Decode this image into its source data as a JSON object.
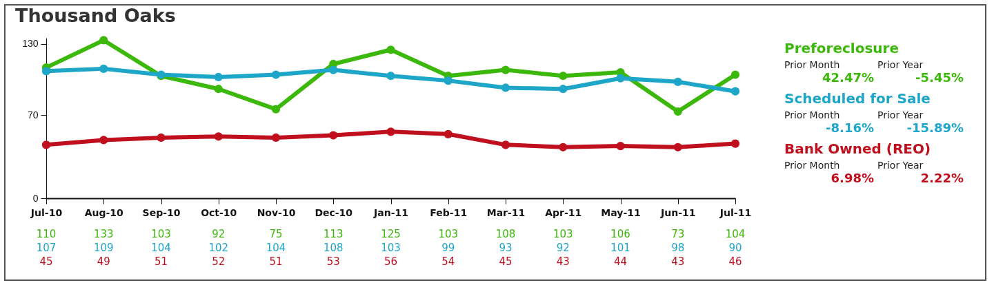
{
  "chart_data": {
    "type": "line",
    "title": "Thousand Oaks",
    "categories": [
      "Jul-10",
      "Aug-10",
      "Sep-10",
      "Oct-10",
      "Nov-10",
      "Dec-10",
      "Jan-11",
      "Feb-11",
      "Mar-11",
      "Apr-11",
      "May-11",
      "Jun-11",
      "Jul-11"
    ],
    "series": [
      {
        "name": "Preforeclosure",
        "color": "#3cb80a",
        "values": [
          110,
          133,
          103,
          92,
          75,
          113,
          125,
          103,
          108,
          103,
          106,
          73,
          104
        ]
      },
      {
        "name": "Scheduled for Sale",
        "color": "#1ea6c8",
        "values": [
          107,
          109,
          104,
          102,
          104,
          108,
          103,
          99,
          93,
          92,
          101,
          98,
          90
        ]
      },
      {
        "name": "Bank Owned (REO)",
        "color": "#c0101e",
        "values": [
          45,
          49,
          51,
          52,
          51,
          53,
          56,
          54,
          45,
          43,
          44,
          43,
          46
        ]
      }
    ],
    "ylim": [
      0,
      135
    ],
    "yticks": [
      0,
      70,
      130
    ],
    "marker": "circle",
    "data_labels": true,
    "legend": "right",
    "annotations": [
      "Prior Month",
      "Prior Year",
      "42.47%",
      "-5.45%",
      "Prior Month",
      "Prior Year",
      "-8.16%",
      "-15.89%",
      "Prior Month",
      "Prior Year",
      "6.98%",
      "2.22%"
    ]
  }
}
